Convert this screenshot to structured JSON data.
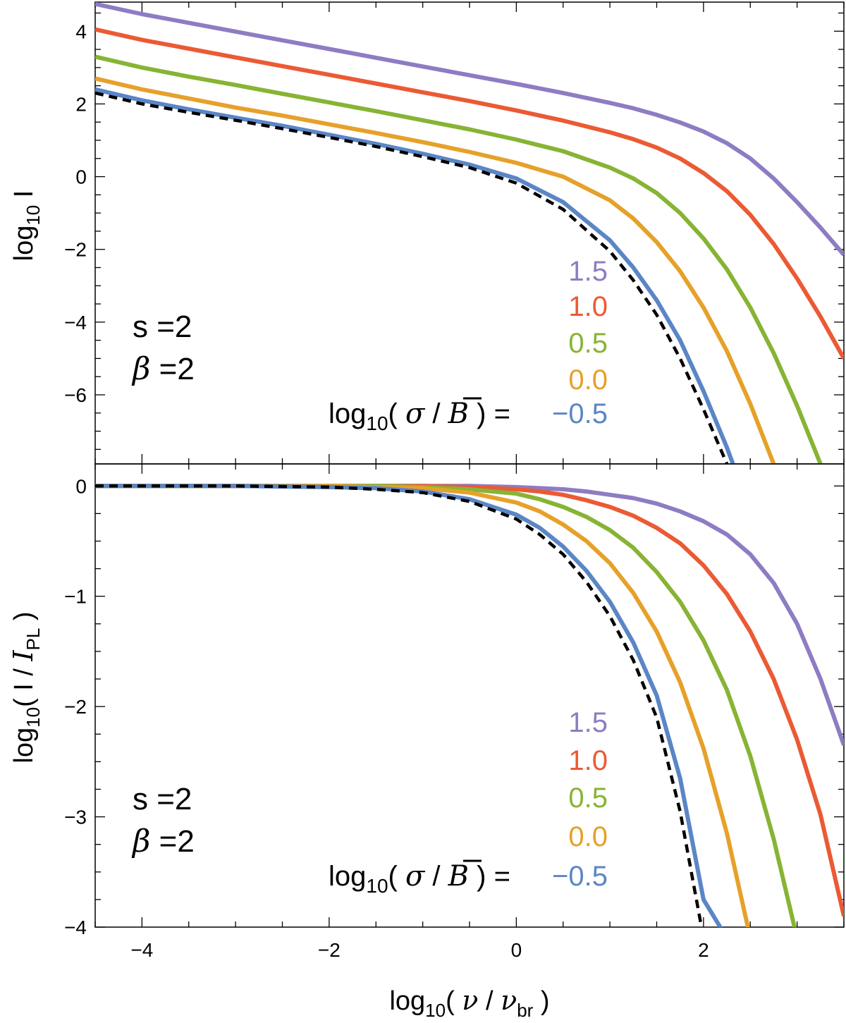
{
  "chart_data": [
    {
      "type": "line",
      "panel": "top",
      "title": "",
      "xlabel": "log10( ν / νbr )",
      "ylabel": "log10 I",
      "xlim": [
        -4.5,
        3.5
      ],
      "ylim": [
        -7.9,
        4.8
      ],
      "xticks": [
        -4,
        -2,
        0,
        2
      ],
      "yticks": [
        4,
        2,
        0,
        -2,
        -4,
        -6
      ],
      "ytick_labels": [
        "4",
        "2",
        "0",
        "−2",
        "−4",
        "−6"
      ],
      "x": [
        -4.5,
        -4.0,
        -3.5,
        -3.0,
        -2.5,
        -2.0,
        -1.5,
        -1.0,
        -0.5,
        0.0,
        0.5,
        1.0,
        1.25,
        1.5,
        1.75,
        2.0,
        2.25,
        2.5,
        2.75,
        3.0,
        3.25,
        3.5
      ],
      "series": [
        {
          "name": "dashed",
          "values": [
            2.3,
            2.0,
            1.77,
            1.55,
            1.32,
            1.08,
            0.83,
            0.55,
            0.25,
            -0.18,
            -0.9,
            -2.05,
            -2.85,
            -3.8,
            -5.0,
            -6.4,
            -7.9,
            null,
            null,
            null,
            null,
            null
          ]
        },
        {
          "name": "−0.5",
          "values": [
            2.4,
            2.1,
            1.85,
            1.62,
            1.4,
            1.15,
            0.9,
            0.63,
            0.33,
            -0.05,
            -0.7,
            -1.75,
            -2.5,
            -3.4,
            -4.5,
            -5.9,
            -7.45,
            -9.2,
            null,
            null,
            null,
            null
          ]
        },
        {
          "name": "0.0",
          "values": [
            2.7,
            2.4,
            2.15,
            1.9,
            1.68,
            1.44,
            1.2,
            0.95,
            0.68,
            0.38,
            0.0,
            -0.65,
            -1.15,
            -1.8,
            -2.6,
            -3.6,
            -4.8,
            -6.25,
            -7.9,
            null,
            null,
            null
          ]
        },
        {
          "name": "0.5",
          "values": [
            3.3,
            3.0,
            2.75,
            2.52,
            2.28,
            2.04,
            1.8,
            1.55,
            1.3,
            1.02,
            0.7,
            0.25,
            -0.05,
            -0.45,
            -1.0,
            -1.7,
            -2.55,
            -3.6,
            -4.85,
            -6.3,
            -7.9,
            null
          ]
        },
        {
          "name": "1.0",
          "values": [
            4.05,
            3.76,
            3.52,
            3.28,
            3.04,
            2.8,
            2.56,
            2.32,
            2.08,
            1.82,
            1.54,
            1.22,
            1.03,
            0.8,
            0.5,
            0.1,
            -0.4,
            -1.05,
            -1.85,
            -2.8,
            -3.85,
            -5.0
          ]
        },
        {
          "name": "1.5",
          "values": [
            4.75,
            4.47,
            4.23,
            3.99,
            3.75,
            3.51,
            3.27,
            3.03,
            2.79,
            2.55,
            2.3,
            2.03,
            1.88,
            1.7,
            1.49,
            1.24,
            0.92,
            0.5,
            -0.05,
            -0.7,
            -1.4,
            -2.15
          ]
        }
      ]
    },
    {
      "type": "line",
      "panel": "bottom",
      "title": "",
      "xlabel": "log10( ν / νbr )",
      "ylabel": "log10( I / IPL )",
      "xlim": [
        -4.5,
        3.5
      ],
      "ylim": [
        -4.0,
        0.2
      ],
      "xticks": [
        -4,
        -2,
        0,
        2
      ],
      "xtick_labels": [
        "−4",
        "−2",
        "0",
        "2"
      ],
      "yticks": [
        0,
        -1,
        -2,
        -3,
        -4
      ],
      "ytick_labels": [
        "0",
        "−1",
        "−2",
        "−3",
        "−4"
      ],
      "x": [
        -4.5,
        -4.0,
        -3.0,
        -2.0,
        -1.5,
        -1.0,
        -0.5,
        0.0,
        0.25,
        0.5,
        0.75,
        1.0,
        1.25,
        1.5,
        1.75,
        2.0,
        2.25,
        2.5,
        2.75,
        3.0,
        3.25,
        3.5
      ],
      "series": [
        {
          "name": "dashed",
          "values": [
            0.0,
            0.0,
            0.0,
            -0.01,
            -0.03,
            -0.06,
            -0.14,
            -0.3,
            -0.44,
            -0.62,
            -0.87,
            -1.18,
            -1.58,
            -2.1,
            -2.95,
            -4.1,
            null,
            null,
            null,
            null,
            null,
            null
          ]
        },
        {
          "name": "−0.5",
          "values": [
            0.0,
            0.0,
            0.0,
            -0.01,
            -0.02,
            -0.05,
            -0.12,
            -0.26,
            -0.38,
            -0.55,
            -0.77,
            -1.05,
            -1.42,
            -1.9,
            -2.65,
            -3.75,
            -4.1,
            null,
            null,
            null,
            null,
            null
          ]
        },
        {
          "name": "0.0",
          "values": [
            0.0,
            0.0,
            0.0,
            0.0,
            -0.01,
            -0.02,
            -0.06,
            -0.15,
            -0.23,
            -0.35,
            -0.5,
            -0.7,
            -0.97,
            -1.32,
            -1.78,
            -2.38,
            -3.15,
            -4.1,
            null,
            null,
            null,
            null
          ]
        },
        {
          "name": "0.5",
          "values": [
            0.0,
            0.0,
            0.0,
            0.0,
            0.0,
            -0.01,
            -0.03,
            -0.07,
            -0.12,
            -0.19,
            -0.28,
            -0.4,
            -0.56,
            -0.78,
            -1.05,
            -1.4,
            -1.85,
            -2.45,
            -3.2,
            -4.1,
            null,
            null
          ]
        },
        {
          "name": "1.0",
          "values": [
            0.0,
            0.0,
            0.0,
            0.0,
            0.0,
            0.0,
            -0.01,
            -0.03,
            -0.05,
            -0.08,
            -0.13,
            -0.19,
            -0.27,
            -0.38,
            -0.52,
            -0.72,
            -0.98,
            -1.32,
            -1.75,
            -2.3,
            -2.98,
            -3.9
          ]
        },
        {
          "name": "1.5",
          "values": [
            0.0,
            0.0,
            0.0,
            0.0,
            0.0,
            0.0,
            0.0,
            -0.01,
            -0.02,
            -0.03,
            -0.05,
            -0.08,
            -0.11,
            -0.16,
            -0.23,
            -0.32,
            -0.44,
            -0.62,
            -0.88,
            -1.25,
            -1.75,
            -2.35
          ]
        }
      ]
    }
  ],
  "labels": {
    "top_ylabel_main": "log",
    "top_ylabel_sub": "10",
    "top_ylabel_tail": " I",
    "bottom_ylabel_main": "log",
    "bottom_ylabel_sub": "10",
    "bottom_ylabel_mid": "( I / ",
    "bottom_ylabel_I": "I",
    "bottom_ylabel_PL": "PL",
    "bottom_ylabel_close": " )",
    "xlabel_log": "log",
    "xlabel_sub": "10",
    "xlabel_open": "( ",
    "xlabel_nu": "ν",
    "xlabel_slash": " / ",
    "xlabel_nu2": "ν",
    "xlabel_br": "br",
    "xlabel_close": " )",
    "s_text": "s =2",
    "beta_symbol": "β",
    "beta_rest": " =2",
    "legend_log": "log",
    "legend_sub": "10",
    "legend_open": "( ",
    "legend_sigma": "σ",
    "legend_slash": " / ",
    "legend_B": "B",
    "legend_close": " ) = ",
    "legend_values": [
      "1.5",
      "1.0",
      "0.5",
      "0.0",
      "−0.5"
    ]
  },
  "colors": {
    "1.5": "#8e7cc3",
    "1.0": "#eb5a34",
    "0.5": "#87b434",
    "0.0": "#e6a12a",
    "−0.5": "#5b86c6",
    "dashed": "#000000"
  }
}
